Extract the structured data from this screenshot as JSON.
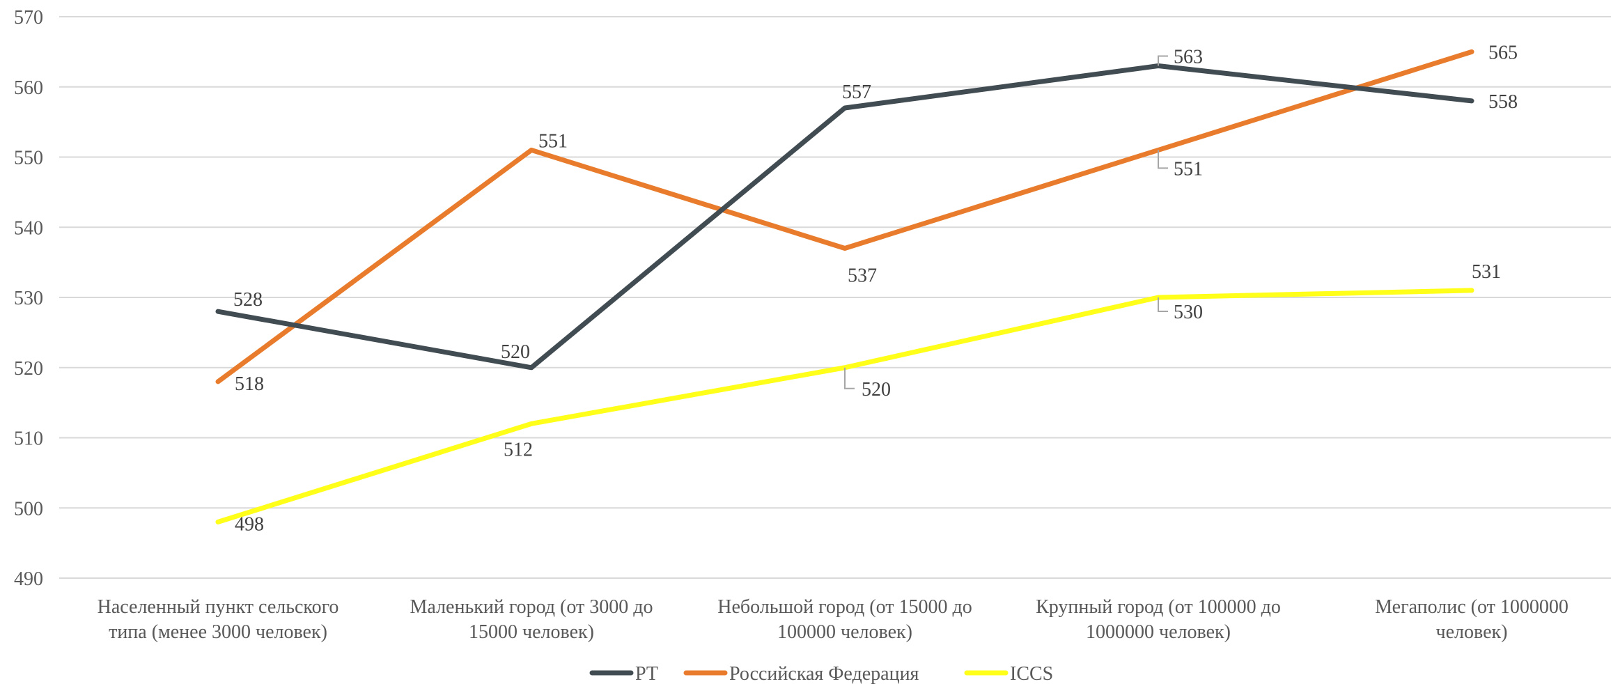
{
  "chart_data": {
    "type": "line",
    "title": "",
    "xlabel": "",
    "ylabel": "",
    "ylim": [
      490,
      570
    ],
    "y_ticks": [
      "490",
      "500",
      "510",
      "520",
      "530",
      "540",
      "550",
      "560",
      "570"
    ],
    "grid": true,
    "legend_position": "bottom",
    "categories": [
      [
        "Населенный пункт сельского",
        "типа (менее 3000 человек)"
      ],
      [
        "Маленький город (от 3000 до",
        "15000 человек)"
      ],
      [
        "Небольшой город (от 15000 до",
        "100000 человек)"
      ],
      [
        "Крупный город (от 100000 до",
        "1000000 человек)"
      ],
      [
        "Мегаполис (от  1000000",
        "человек)"
      ]
    ],
    "series": [
      {
        "name": "РТ",
        "color": "#404b52",
        "values": [
          528,
          520,
          557,
          563,
          558
        ]
      },
      {
        "name": "Российская Федерация",
        "color": "#e87c2c",
        "values": [
          518,
          551,
          537,
          551,
          565
        ]
      },
      {
        "name": "ICCS",
        "color": "#ffff1a",
        "values": [
          498,
          512,
          520,
          530,
          531
        ]
      }
    ]
  }
}
